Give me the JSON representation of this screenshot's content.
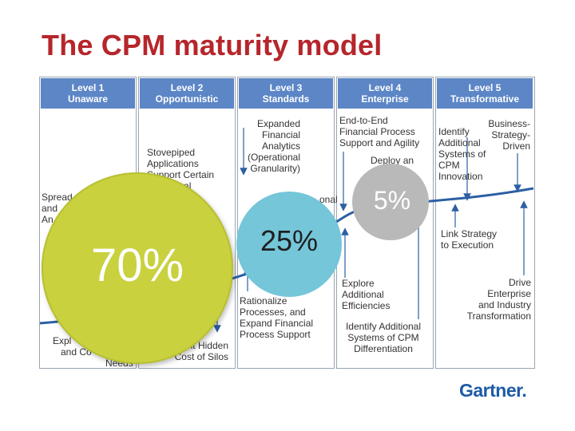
{
  "title": "The CPM maturity model",
  "levels": [
    {
      "name": "Level 1",
      "label": "Unaware"
    },
    {
      "name": "Level 2",
      "label": "Opportunistic"
    },
    {
      "name": "Level 3",
      "label": "Standards"
    },
    {
      "name": "Level 4",
      "label": "Enterprise"
    },
    {
      "name": "Level 5",
      "label": "Transformative"
    }
  ],
  "annotations": {
    "l1_spread_1": "Spread",
    "l1_spread_2": "and",
    "l1_spread_3": "An",
    "l1_bottom_1": "Expl",
    "l1_bottom_2": "and Co",
    "l1_bottom_3": "Needs",
    "l2_top": "Stovepiped\nApplications\nSupport Certain\nFunctional",
    "l2_bottom": "nt Hidden\nCost of Silos",
    "l3_top": "Expanded\nFinancial\nAnalytics\n(Operational\nGranularity)",
    "l3_mid": "onal\nn",
    "l3_bottom": "Rationalize\nProcesses, and\nExpand Financial\nProcess Support",
    "l4_top": "End-to-End\nFinancial Process\nSupport and Agility",
    "l4_deploy": "Deploy an",
    "l4_mid": "Explore\nAdditional\nEfficiencies",
    "l4_bottom": "Identify Additional\nSystems of CPM\nDifferentiation",
    "l5_topleft": "Identify\nAdditional\nSystems of\nCPM\nInnovation",
    "l5_topright": "Business-\nStrategy-\nDriven",
    "l5_mid": "Link Strategy\nto Execution",
    "l5_bottom": "Drive\nEnterprise\nand Industry\nTransformation"
  },
  "bubbles": [
    {
      "label": "70%",
      "color": "#c9d13f"
    },
    {
      "label": "25%",
      "color": "#74c6d8"
    },
    {
      "label": "5%",
      "color": "#b9b9b9"
    }
  ],
  "colors": {
    "title": "#b5262b",
    "header": "#5c86c6",
    "curve": "#2c5fa3",
    "brand": "#1d5aa6"
  },
  "logo": {
    "text": "Gartner."
  }
}
